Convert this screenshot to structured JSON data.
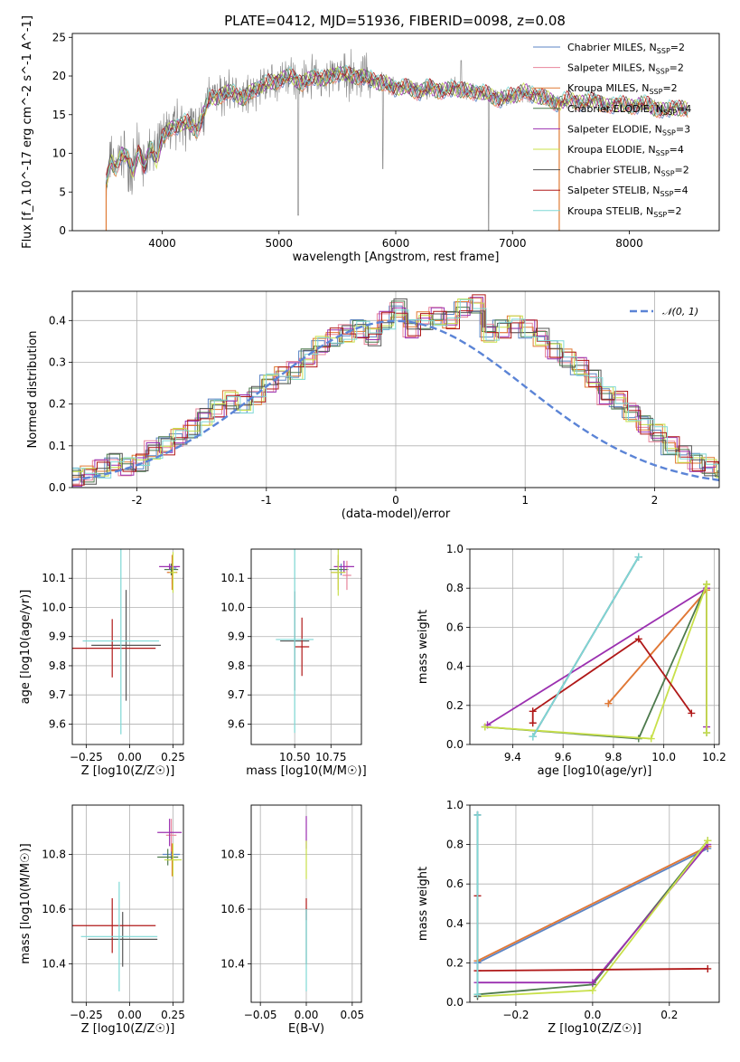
{
  "figure": {
    "title": "PLATE=0412, MJD=51936, FIBERID=0098, z=0.08"
  },
  "models": [
    {
      "name": "Chabrier MILES",
      "nssp": "2",
      "color": "#5b84c4"
    },
    {
      "name": "Salpeter MILES",
      "nssp": "2",
      "color": "#e8849b"
    },
    {
      "name": "Kroupa MILES",
      "nssp": "2",
      "color": "#e07a33"
    },
    {
      "name": "Chabrier ELODIE",
      "nssp": "4",
      "color": "#4d7a4d"
    },
    {
      "name": "Salpeter ELODIE",
      "nssp": "3",
      "color": "#9b30b0"
    },
    {
      "name": "Kroupa ELODIE",
      "nssp": "4",
      "color": "#c8e04a"
    },
    {
      "name": "Chabrier STELIB",
      "nssp": "2",
      "color": "#555555"
    },
    {
      "name": "Salpeter STELIB",
      "nssp": "4",
      "color": "#b01818"
    },
    {
      "name": "Kroupa STELIB",
      "nssp": "2",
      "color": "#7fd8d6"
    }
  ],
  "chart_data": [
    {
      "id": "spectrum",
      "type": "line",
      "xlabel": "wavelength [Angstrom, rest frame]",
      "ylabel": "Flux [f_λ 10^-17 erg cm^-2 s^-1 A^-1]",
      "xlim": [
        3230,
        8770
      ],
      "ylim": [
        0,
        25.5
      ],
      "xticks": [
        4000,
        5000,
        6000,
        7000,
        8000
      ],
      "yticks": [
        0,
        5,
        10,
        15,
        20,
        25
      ],
      "grid": false,
      "legend_position": "right",
      "data_color": "#808080",
      "model_continuum": {
        "x": [
          3520,
          3560,
          3600,
          3650,
          3700,
          3750,
          3800,
          3850,
          3900,
          3950,
          4000,
          4100,
          4200,
          4300,
          4400,
          4500,
          4600,
          4700,
          4800,
          4900,
          5000,
          5100,
          5200,
          5300,
          5400,
          5500,
          5600,
          5700,
          5800,
          5900,
          6000,
          6100,
          6200,
          6300,
          6400,
          6500,
          6600,
          6700,
          6800,
          6900,
          7000,
          7100,
          7200,
          7300,
          7400,
          7500,
          7600,
          7700,
          7800,
          7900,
          8000,
          8100,
          8200,
          8300,
          8400,
          8500
        ],
        "y": [
          6.0,
          9.0,
          8.0,
          10.0,
          9.5,
          7.5,
          10.5,
          8.0,
          11.0,
          9.0,
          12.0,
          13.5,
          14.0,
          13.0,
          17.0,
          17.5,
          18.0,
          17.0,
          18.5,
          19.0,
          19.5,
          20.0,
          19.0,
          20.0,
          19.5,
          20.5,
          20.0,
          20.0,
          19.5,
          19.0,
          18.5,
          18.5,
          18.0,
          18.5,
          18.0,
          18.5,
          18.0,
          18.0,
          17.5,
          17.0,
          17.5,
          18.0,
          17.5,
          17.0,
          16.5,
          17.0,
          16.5,
          17.0,
          16.0,
          16.5,
          16.0,
          16.5,
          16.0,
          15.5,
          16.0,
          15.5
        ]
      }
    },
    {
      "id": "residuals",
      "type": "histogram",
      "xlabel": "(data-model)/error",
      "ylabel": "Normed distribution",
      "xlim": [
        -2.5,
        2.5
      ],
      "ylim": [
        0,
        0.47
      ],
      "xticks": [
        -2,
        -1,
        0,
        1,
        2
      ],
      "yticks": [
        0.0,
        0.1,
        0.2,
        0.3,
        0.4
      ],
      "grid": true,
      "legend": "top-right",
      "reference_label": "𝒩(0, 1)",
      "reference_color": "#5b84d6",
      "bin_width": 0.1,
      "base_hist": [
        0.02,
        0.025,
        0.03,
        0.045,
        0.06,
        0.05,
        0.06,
        0.09,
        0.1,
        0.12,
        0.14,
        0.17,
        0.19,
        0.21,
        0.2,
        0.22,
        0.25,
        0.27,
        0.28,
        0.31,
        0.34,
        0.36,
        0.37,
        0.38,
        0.36,
        0.4,
        0.43,
        0.38,
        0.4,
        0.41,
        0.4,
        0.43,
        0.44,
        0.37,
        0.38,
        0.39,
        0.38,
        0.36,
        0.33,
        0.31,
        0.29,
        0.26,
        0.22,
        0.21,
        0.18,
        0.15,
        0.13,
        0.1,
        0.08,
        0.06,
        0.05,
        0.04,
        0.03
      ]
    },
    {
      "id": "Z-age",
      "type": "errorbar",
      "xlabel": "Z [log10(Z/Z☉)]",
      "ylabel": "age [log10(age/yr)]",
      "xlim": [
        -0.33,
        0.31
      ],
      "ylim": [
        9.53,
        10.2
      ],
      "xticks": [
        -0.25,
        0.0,
        0.25
      ],
      "xticklabels": [
        "−0.25",
        "0.00",
        "0.25"
      ],
      "yticks": [
        9.6,
        9.7,
        9.8,
        9.9,
        10.0,
        10.1
      ],
      "points": [
        {
          "m": 0,
          "x": 0.25,
          "xe": 0.02,
          "y": 10.135,
          "ye": 0.005
        },
        {
          "m": 1,
          "x": 0.245,
          "xe": 0.025,
          "y": 10.12,
          "ye": 0.04
        },
        {
          "m": 2,
          "x": 0.245,
          "xe": 0.03,
          "y": 10.12,
          "ye": 0.06
        },
        {
          "m": 3,
          "x": 0.24,
          "xe": 0.04,
          "y": 10.13,
          "ye": 0.02
        },
        {
          "m": 4,
          "x": 0.23,
          "xe": 0.06,
          "y": 10.14,
          "ye": 0.01
        },
        {
          "m": 5,
          "x": 0.25,
          "xe": 0.02,
          "y": 10.12,
          "ye": 0.07
        },
        {
          "m": 6,
          "x": -0.02,
          "xe": 0.2,
          "y": 9.87,
          "ye": 0.19
        },
        {
          "m": 7,
          "x": -0.1,
          "xe": 0.25,
          "y": 9.86,
          "ye": 0.1
        },
        {
          "m": 8,
          "x": -0.05,
          "xe": 0.22,
          "y": 9.885,
          "ye": 0.32
        }
      ]
    },
    {
      "id": "mass-age",
      "type": "errorbar",
      "xlabel": "mass [log10(M/M☉)]",
      "ylabel": "",
      "xlim": [
        10.2,
        10.96
      ],
      "ylim": [
        9.53,
        10.2
      ],
      "xticks": [
        10.5,
        10.75
      ],
      "xticklabels": [
        "10.50",
        "10.75"
      ],
      "yticks": [
        9.6,
        9.7,
        9.8,
        9.9,
        10.0,
        10.1
      ],
      "points": [
        {
          "m": 0,
          "x": 10.82,
          "xe": 0.05,
          "y": 10.13,
          "ye": 0.02
        },
        {
          "m": 1,
          "x": 10.86,
          "xe": 0.03,
          "y": 10.11,
          "ye": 0.05
        },
        {
          "m": 2,
          "x": 10.8,
          "xe": 0.05,
          "y": 10.12,
          "ye": 0.06
        },
        {
          "m": 3,
          "x": 10.8,
          "xe": 0.06,
          "y": 10.13,
          "ye": 0.03
        },
        {
          "m": 4,
          "x": 10.84,
          "xe": 0.07,
          "y": 10.14,
          "ye": 0.02
        },
        {
          "m": 5,
          "x": 10.8,
          "xe": 0.05,
          "y": 10.12,
          "ye": 0.08
        },
        {
          "m": 6,
          "x": 10.5,
          "xe": 0.1,
          "y": 9.885,
          "ye": 0.17
        },
        {
          "m": 7,
          "x": 10.55,
          "xe": 0.05,
          "y": 9.865,
          "ye": 0.1
        },
        {
          "m": 8,
          "x": 10.5,
          "xe": 0.13,
          "y": 9.89,
          "ye": 0.32
        }
      ]
    },
    {
      "id": "age-weight",
      "type": "line",
      "xlabel": "age [log10(age/yr)]",
      "ylabel": "mass weight",
      "xlim": [
        9.23,
        10.22
      ],
      "ylim": [
        0,
        1
      ],
      "xticks": [
        9.4,
        9.6,
        9.8,
        10.0,
        10.2
      ],
      "xticklabels": [
        "9.4",
        "9.6",
        "9.8",
        "10.0",
        "10.2"
      ],
      "yticks": [
        0.0,
        0.2,
        0.4,
        0.6,
        0.8,
        1.0
      ],
      "grid": true,
      "series": [
        {
          "m": 0,
          "x": [
            9.48,
            9.9
          ],
          "y": [
            0.04,
            0.96
          ]
        },
        {
          "m": 1,
          "x": [
            9.78,
            10.17
          ],
          "y": [
            0.21,
            0.79
          ]
        },
        {
          "m": 2,
          "x": [
            9.78,
            10.17
          ],
          "y": [
            0.21,
            0.79
          ]
        },
        {
          "m": 3,
          "x": [
            9.29,
            9.9,
            10.17,
            10.17
          ],
          "y": [
            0.09,
            0.03,
            0.82,
            0.06
          ]
        },
        {
          "m": 4,
          "x": [
            9.3,
            10.17,
            10.17
          ],
          "y": [
            0.1,
            0.8,
            0.09
          ]
        },
        {
          "m": 5,
          "x": [
            9.29,
            9.95,
            10.17,
            10.17
          ],
          "y": [
            0.09,
            0.03,
            0.82,
            0.06
          ]
        },
        {
          "m": 6,
          "x": [
            9.48,
            9.9
          ],
          "y": [
            0.04,
            0.96
          ]
        },
        {
          "m": 7,
          "x": [
            9.48,
            9.48,
            9.9,
            10.11
          ],
          "y": [
            0.11,
            0.17,
            0.54,
            0.16
          ]
        },
        {
          "m": 8,
          "x": [
            9.48,
            9.9
          ],
          "y": [
            0.04,
            0.96
          ]
        }
      ]
    },
    {
      "id": "Z-mass",
      "type": "errorbar",
      "xlabel": "Z [log10(Z/Z☉)]",
      "ylabel": "mass [log10(M/M☉)]",
      "xlim": [
        -0.33,
        0.31
      ],
      "ylim": [
        10.26,
        10.98
      ],
      "xticks": [
        -0.25,
        0.0,
        0.25
      ],
      "xticklabels": [
        "−0.25",
        "0.00",
        "0.25"
      ],
      "yticks": [
        10.4,
        10.6,
        10.8
      ],
      "points": [
        {
          "m": 0,
          "x": 0.24,
          "xe": 0.05,
          "y": 10.8,
          "ye": 0.02
        },
        {
          "m": 1,
          "x": 0.24,
          "xe": 0.03,
          "y": 10.87,
          "ye": 0.06
        },
        {
          "m": 2,
          "x": 0.245,
          "xe": 0.03,
          "y": 10.78,
          "ye": 0.06
        },
        {
          "m": 3,
          "x": 0.22,
          "xe": 0.06,
          "y": 10.79,
          "ye": 0.03
        },
        {
          "m": 4,
          "x": 0.23,
          "xe": 0.07,
          "y": 10.88,
          "ye": 0.05
        },
        {
          "m": 5,
          "x": 0.25,
          "xe": 0.05,
          "y": 10.78,
          "ye": 0.06
        },
        {
          "m": 6,
          "x": -0.04,
          "xe": 0.2,
          "y": 10.49,
          "ye": 0.1
        },
        {
          "m": 7,
          "x": -0.1,
          "xe": 0.25,
          "y": 10.54,
          "ye": 0.1
        },
        {
          "m": 8,
          "x": -0.06,
          "xe": 0.22,
          "y": 10.5,
          "ye": 0.2
        }
      ]
    },
    {
      "id": "ebv-mass",
      "type": "errorbar",
      "xlabel": "E(B-V)",
      "ylabel": "",
      "xlim": [
        -0.06,
        0.06
      ],
      "ylim": [
        10.26,
        10.98
      ],
      "xticks": [
        -0.05,
        0.0,
        0.05
      ],
      "xticklabels": [
        "−0.05",
        "0.00",
        "0.05"
      ],
      "yticks": [
        10.4,
        10.6,
        10.8
      ],
      "points": [
        {
          "m": 4,
          "x": 0.0,
          "xe": 0.0,
          "y": 10.88,
          "ye": 0.06
        },
        {
          "m": 5,
          "x": 0.0,
          "xe": 0.0,
          "y": 10.78,
          "ye": 0.07
        },
        {
          "m": 7,
          "x": 0.0,
          "xe": 0.0,
          "y": 10.6,
          "ye": 0.04
        },
        {
          "m": 6,
          "x": 0.0,
          "xe": 0.0,
          "y": 10.5,
          "ye": 0.1
        },
        {
          "m": 8,
          "x": 0.0,
          "xe": 0.0,
          "y": 10.45,
          "ye": 0.15
        }
      ]
    },
    {
      "id": "Z-weight",
      "type": "line",
      "xlabel": "Z [log10(Z/Z☉)]",
      "ylabel": "mass weight",
      "xlim": [
        -0.32,
        0.33
      ],
      "ylim": [
        0,
        1
      ],
      "xticks": [
        -0.2,
        0.0,
        0.2
      ],
      "xticklabels": [
        "−0.2",
        "0.0",
        "0.2"
      ],
      "yticks": [
        0.0,
        0.2,
        0.4,
        0.6,
        0.8,
        1.0
      ],
      "grid": true,
      "series": [
        {
          "m": 0,
          "x": [
            -0.3,
            -0.3,
            0.3
          ],
          "y": [
            0.95,
            0.2,
            0.78
          ]
        },
        {
          "m": 1,
          "x": [
            -0.3,
            0.3
          ],
          "y": [
            0.21,
            0.79
          ]
        },
        {
          "m": 2,
          "x": [
            -0.3,
            0.3
          ],
          "y": [
            0.21,
            0.79
          ]
        },
        {
          "m": 3,
          "x": [
            -0.3,
            0.0,
            0.3
          ],
          "y": [
            0.04,
            0.09,
            0.82
          ]
        },
        {
          "m": 4,
          "x": [
            -0.3,
            0.0,
            0.3
          ],
          "y": [
            0.1,
            0.1,
            0.8
          ]
        },
        {
          "m": 5,
          "x": [
            -0.3,
            0.0,
            0.3
          ],
          "y": [
            0.03,
            0.06,
            0.82
          ]
        },
        {
          "m": 6,
          "x": [
            -0.3,
            -0.3
          ],
          "y": [
            0.95,
            0.03
          ]
        },
        {
          "m": 7,
          "x": [
            -0.3,
            -0.3,
            0.3
          ],
          "y": [
            0.54,
            0.16,
            0.17
          ]
        },
        {
          "m": 8,
          "x": [
            -0.3,
            -0.3
          ],
          "y": [
            0.95,
            0.04
          ]
        }
      ]
    }
  ]
}
